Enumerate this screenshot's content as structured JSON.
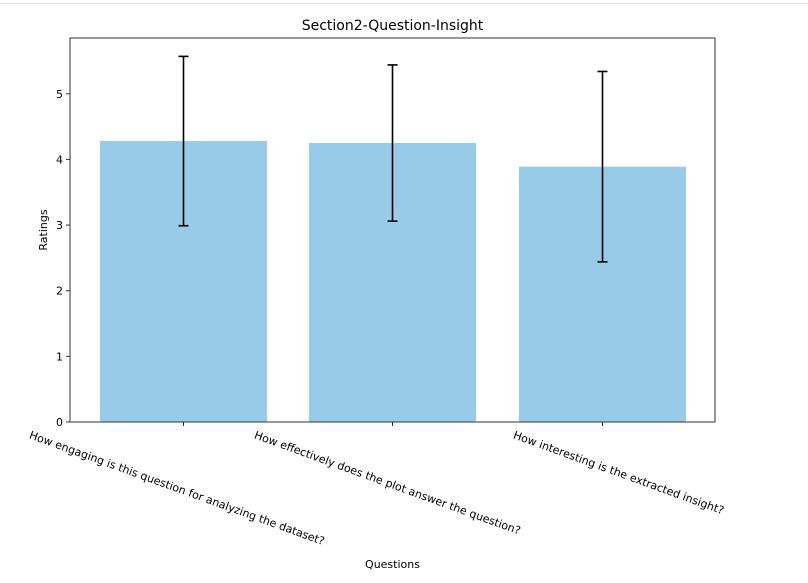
{
  "chart_data": {
    "type": "bar",
    "title": "Section2-Question-Insight",
    "xlabel": "Questions",
    "ylabel": "Ratings",
    "categories": [
      "How engaging is this question for analyzing the dataset?",
      "How effectively does the plot answer the question?",
      "How interesting is the extracted insight?"
    ],
    "values": [
      4.28,
      4.25,
      3.89
    ],
    "error_low": [
      2.99,
      3.06,
      2.44
    ],
    "error_high": [
      5.57,
      5.44,
      5.34
    ],
    "y_ticks": [
      0,
      1,
      2,
      3,
      4,
      5
    ],
    "ylim": [
      0,
      5.85
    ],
    "bar_color": "#97cbe8",
    "error_color": "#000000",
    "grid": false
  }
}
